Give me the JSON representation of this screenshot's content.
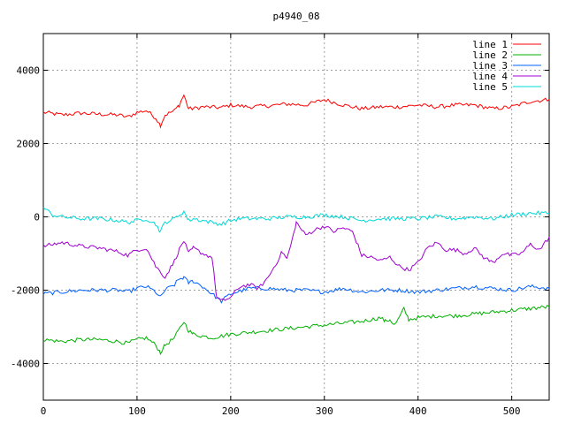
{
  "chart_data": {
    "type": "line",
    "title": "p4940_08",
    "xlabel": "",
    "ylabel": "",
    "xlim": [
      0,
      540
    ],
    "ylim": [
      -5000,
      5000
    ],
    "x_ticks": [
      0,
      100,
      200,
      300,
      400,
      500
    ],
    "y_ticks": [
      -4000,
      -2000,
      0,
      2000,
      4000
    ],
    "x_tick_labels": [
      "0",
      "100",
      "200",
      "300",
      "400",
      "500"
    ],
    "y_tick_labels": [
      "-4000",
      "-2000",
      "0",
      "2000",
      "4000"
    ],
    "grid": true,
    "legend_position": "top-right",
    "series": [
      {
        "name": "line 1",
        "color": "#ff0000",
        "points": [
          [
            0,
            2850
          ],
          [
            20,
            2780
          ],
          [
            40,
            2830
          ],
          [
            60,
            2800
          ],
          [
            80,
            2780
          ],
          [
            90,
            2720
          ],
          [
            100,
            2850
          ],
          [
            110,
            2900
          ],
          [
            120,
            2700
          ],
          [
            125,
            2500
          ],
          [
            130,
            2780
          ],
          [
            140,
            2900
          ],
          [
            145,
            3050
          ],
          [
            150,
            3320
          ],
          [
            155,
            2950
          ],
          [
            160,
            2950
          ],
          [
            170,
            3000
          ],
          [
            190,
            2980
          ],
          [
            200,
            3050
          ],
          [
            220,
            3000
          ],
          [
            240,
            3030
          ],
          [
            260,
            3080
          ],
          [
            280,
            3050
          ],
          [
            300,
            3200
          ],
          [
            320,
            3050
          ],
          [
            340,
            2950
          ],
          [
            360,
            3000
          ],
          [
            380,
            3000
          ],
          [
            400,
            3050
          ],
          [
            420,
            3000
          ],
          [
            440,
            3050
          ],
          [
            460,
            3050
          ],
          [
            480,
            2950
          ],
          [
            500,
            3000
          ],
          [
            520,
            3150
          ],
          [
            540,
            3200
          ]
        ]
      },
      {
        "name": "line 2",
        "color": "#00b000",
        "points": [
          [
            0,
            -3350
          ],
          [
            20,
            -3400
          ],
          [
            40,
            -3350
          ],
          [
            60,
            -3350
          ],
          [
            80,
            -3400
          ],
          [
            90,
            -3450
          ],
          [
            100,
            -3350
          ],
          [
            110,
            -3300
          ],
          [
            120,
            -3500
          ],
          [
            125,
            -3700
          ],
          [
            130,
            -3500
          ],
          [
            140,
            -3300
          ],
          [
            150,
            -2850
          ],
          [
            155,
            -3100
          ],
          [
            160,
            -3200
          ],
          [
            170,
            -3250
          ],
          [
            180,
            -3300
          ],
          [
            200,
            -3200
          ],
          [
            220,
            -3150
          ],
          [
            240,
            -3100
          ],
          [
            260,
            -3050
          ],
          [
            280,
            -3000
          ],
          [
            300,
            -2950
          ],
          [
            320,
            -2900
          ],
          [
            340,
            -2850
          ],
          [
            360,
            -2750
          ],
          [
            365,
            -2850
          ],
          [
            370,
            -2800
          ],
          [
            375,
            -2950
          ],
          [
            380,
            -2750
          ],
          [
            385,
            -2500
          ],
          [
            390,
            -2800
          ],
          [
            400,
            -2750
          ],
          [
            420,
            -2700
          ],
          [
            440,
            -2700
          ],
          [
            460,
            -2650
          ],
          [
            480,
            -2600
          ],
          [
            500,
            -2550
          ],
          [
            520,
            -2500
          ],
          [
            540,
            -2450
          ]
        ]
      },
      {
        "name": "line 3",
        "color": "#0060ff",
        "points": [
          [
            0,
            -2100
          ],
          [
            20,
            -2050
          ],
          [
            40,
            -2000
          ],
          [
            60,
            -2000
          ],
          [
            80,
            -2000
          ],
          [
            90,
            -2050
          ],
          [
            100,
            -1950
          ],
          [
            110,
            -1900
          ],
          [
            120,
            -2050
          ],
          [
            125,
            -2200
          ],
          [
            130,
            -2000
          ],
          [
            140,
            -1850
          ],
          [
            145,
            -1700
          ],
          [
            150,
            -1650
          ],
          [
            155,
            -1800
          ],
          [
            160,
            -1750
          ],
          [
            170,
            -1900
          ],
          [
            180,
            -2100
          ],
          [
            190,
            -2300
          ],
          [
            200,
            -2100
          ],
          [
            220,
            -1950
          ],
          [
            240,
            -1950
          ],
          [
            260,
            -2000
          ],
          [
            280,
            -2000
          ],
          [
            300,
            -2050
          ],
          [
            320,
            -1950
          ],
          [
            340,
            -2050
          ],
          [
            360,
            -2000
          ],
          [
            380,
            -2000
          ],
          [
            400,
            -2050
          ],
          [
            420,
            -2000
          ],
          [
            440,
            -1950
          ],
          [
            460,
            -1900
          ],
          [
            480,
            -1950
          ],
          [
            500,
            -2000
          ],
          [
            520,
            -1900
          ],
          [
            540,
            -1950
          ]
        ]
      },
      {
        "name": "line 4",
        "color": "#a000d0",
        "points": [
          [
            0,
            -800
          ],
          [
            20,
            -700
          ],
          [
            40,
            -800
          ],
          [
            60,
            -850
          ],
          [
            80,
            -950
          ],
          [
            90,
            -1050
          ],
          [
            100,
            -900
          ],
          [
            110,
            -850
          ],
          [
            120,
            -1350
          ],
          [
            130,
            -1650
          ],
          [
            140,
            -1200
          ],
          [
            145,
            -900
          ],
          [
            150,
            -650
          ],
          [
            155,
            -1000
          ],
          [
            160,
            -850
          ],
          [
            170,
            -1000
          ],
          [
            180,
            -1100
          ],
          [
            185,
            -2200
          ],
          [
            190,
            -2300
          ],
          [
            200,
            -2200
          ],
          [
            210,
            -1900
          ],
          [
            220,
            -1850
          ],
          [
            230,
            -1950
          ],
          [
            240,
            -1650
          ],
          [
            250,
            -1200
          ],
          [
            255,
            -950
          ],
          [
            260,
            -1150
          ],
          [
            265,
            -700
          ],
          [
            270,
            -150
          ],
          [
            280,
            -500
          ],
          [
            290,
            -350
          ],
          [
            300,
            -250
          ],
          [
            310,
            -400
          ],
          [
            320,
            -300
          ],
          [
            330,
            -400
          ],
          [
            340,
            -1050
          ],
          [
            350,
            -1100
          ],
          [
            360,
            -1200
          ],
          [
            370,
            -1100
          ],
          [
            380,
            -1350
          ],
          [
            390,
            -1450
          ],
          [
            400,
            -1250
          ],
          [
            410,
            -850
          ],
          [
            420,
            -700
          ],
          [
            430,
            -900
          ],
          [
            440,
            -900
          ],
          [
            450,
            -1000
          ],
          [
            460,
            -850
          ],
          [
            470,
            -1100
          ],
          [
            480,
            -1250
          ],
          [
            490,
            -1000
          ],
          [
            500,
            -1050
          ],
          [
            510,
            -1000
          ],
          [
            520,
            -750
          ],
          [
            530,
            -900
          ],
          [
            540,
            -550
          ]
        ]
      },
      {
        "name": "line 5",
        "color": "#00d8d8",
        "points": [
          [
            0,
            250
          ],
          [
            10,
            50
          ],
          [
            20,
            0
          ],
          [
            40,
            -50
          ],
          [
            60,
            -50
          ],
          [
            80,
            -100
          ],
          [
            90,
            -150
          ],
          [
            100,
            -100
          ],
          [
            110,
            -50
          ],
          [
            120,
            -200
          ],
          [
            125,
            -400
          ],
          [
            130,
            -150
          ],
          [
            140,
            -50
          ],
          [
            150,
            150
          ],
          [
            155,
            -100
          ],
          [
            160,
            -50
          ],
          [
            170,
            -100
          ],
          [
            180,
            -150
          ],
          [
            190,
            -200
          ],
          [
            200,
            -100
          ],
          [
            210,
            -50
          ],
          [
            220,
            -50
          ],
          [
            240,
            -50
          ],
          [
            260,
            0
          ],
          [
            280,
            0
          ],
          [
            300,
            50
          ],
          [
            320,
            0
          ],
          [
            340,
            -100
          ],
          [
            360,
            -50
          ],
          [
            380,
            -50
          ],
          [
            400,
            -50
          ],
          [
            420,
            0
          ],
          [
            440,
            -50
          ],
          [
            460,
            0
          ],
          [
            480,
            -50
          ],
          [
            500,
            50
          ],
          [
            520,
            100
          ],
          [
            540,
            100
          ]
        ]
      }
    ]
  }
}
